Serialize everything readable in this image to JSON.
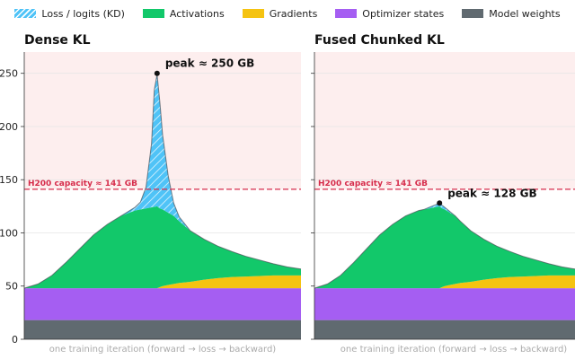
{
  "colors": {
    "loss": "#4fc3f7",
    "activations": "#12c86a",
    "gradients": "#f5c311",
    "optimizer": "#a55ef2",
    "weights": "#606a70",
    "capacity": "#d62c4b",
    "danger_zone": "#fdeeee"
  },
  "legend": [
    {
      "key": "loss",
      "label": "Loss / logits (KD)",
      "hatched": true
    },
    {
      "key": "activations",
      "label": "Activations",
      "hatched": false
    },
    {
      "key": "gradients",
      "label": "Gradients",
      "hatched": false
    },
    {
      "key": "optimizer",
      "label": "Optimizer states",
      "hatched": false
    },
    {
      "key": "weights",
      "label": "Model weights",
      "hatched": false
    }
  ],
  "chart_data": [
    {
      "type": "area",
      "title": "Dense KL",
      "xlabel": "one training iteration  (forward → loss → backward)",
      "ylabel": "",
      "ylim": [
        0,
        270
      ],
      "yticks": [
        0,
        50,
        100,
        150,
        200,
        250
      ],
      "show_ytick_labels": true,
      "capacity": {
        "value": 141,
        "label": "H200 capacity ≈ 141 GB"
      },
      "peak": {
        "x": 0.48,
        "value": 250,
        "label": "peak ≈ 250 GB"
      },
      "x": [
        0,
        0.05,
        0.1,
        0.15,
        0.2,
        0.25,
        0.3,
        0.35,
        0.4,
        0.42,
        0.44,
        0.46,
        0.47,
        0.48,
        0.49,
        0.5,
        0.52,
        0.54,
        0.56,
        0.6,
        0.65,
        0.7,
        0.75,
        0.8,
        0.85,
        0.9,
        0.95,
        1
      ],
      "series": [
        {
          "key": "weights",
          "values": [
            18,
            18,
            18,
            18,
            18,
            18,
            18,
            18,
            18,
            18,
            18,
            18,
            18,
            18,
            18,
            18,
            18,
            18,
            18,
            18,
            18,
            18,
            18,
            18,
            18,
            18,
            18,
            18
          ]
        },
        {
          "key": "optimizer",
          "values": [
            30,
            30,
            30,
            30,
            30,
            30,
            30,
            30,
            30,
            30,
            30,
            30,
            30,
            30,
            30,
            30,
            30,
            30,
            30,
            30,
            30,
            30,
            30,
            30,
            30,
            30,
            30,
            30
          ]
        },
        {
          "key": "gradients",
          "values": [
            0,
            0,
            0,
            0,
            0,
            0,
            0,
            0,
            0,
            0,
            0,
            0,
            0,
            0,
            1,
            2,
            3,
            4,
            5,
            6,
            8,
            9.5,
            10.5,
            11,
            11.5,
            12,
            12,
            12
          ]
        },
        {
          "key": "activations",
          "values": [
            0,
            4,
            12,
            24,
            37,
            50,
            60,
            68,
            73,
            74,
            75,
            76,
            76.5,
            77,
            74,
            72,
            68,
            64,
            58,
            48,
            38,
            30,
            24,
            19,
            15,
            11,
            8,
            6
          ]
        },
        {
          "key": "loss",
          "values": [
            0,
            0,
            0,
            0,
            0,
            0,
            0,
            0,
            3,
            7,
            20,
            60,
            110,
            124,
            100,
            70,
            35,
            12,
            4,
            0,
            0,
            0,
            0,
            0,
            0,
            0,
            0,
            0
          ]
        }
      ]
    },
    {
      "type": "area",
      "title": "Fused Chunked KL",
      "xlabel": "one training iteration  (forward → loss → backward)",
      "ylabel": "",
      "ylim": [
        0,
        270
      ],
      "yticks": [
        0,
        50,
        100,
        150,
        200,
        250
      ],
      "show_ytick_labels": false,
      "capacity": {
        "value": 141,
        "label": "H200 capacity ≈ 141 GB"
      },
      "peak": {
        "x": 0.48,
        "value": 128,
        "label": "peak ≈ 128 GB"
      },
      "x": [
        0,
        0.05,
        0.1,
        0.15,
        0.2,
        0.25,
        0.3,
        0.35,
        0.4,
        0.42,
        0.44,
        0.46,
        0.47,
        0.48,
        0.49,
        0.5,
        0.52,
        0.54,
        0.56,
        0.6,
        0.65,
        0.7,
        0.75,
        0.8,
        0.85,
        0.9,
        0.95,
        1
      ],
      "series": [
        {
          "key": "weights",
          "values": [
            18,
            18,
            18,
            18,
            18,
            18,
            18,
            18,
            18,
            18,
            18,
            18,
            18,
            18,
            18,
            18,
            18,
            18,
            18,
            18,
            18,
            18,
            18,
            18,
            18,
            18,
            18,
            18
          ]
        },
        {
          "key": "optimizer",
          "values": [
            30,
            30,
            30,
            30,
            30,
            30,
            30,
            30,
            30,
            30,
            30,
            30,
            30,
            30,
            30,
            30,
            30,
            30,
            30,
            30,
            30,
            30,
            30,
            30,
            30,
            30,
            30,
            30
          ]
        },
        {
          "key": "gradients",
          "values": [
            0,
            0,
            0,
            0,
            0,
            0,
            0,
            0,
            0,
            0,
            0,
            0,
            0,
            0,
            1,
            2,
            3,
            4,
            5,
            6,
            8,
            9.5,
            10.5,
            11,
            11.5,
            12,
            12,
            12
          ]
        },
        {
          "key": "activations",
          "values": [
            0,
            4,
            12,
            24,
            37,
            50,
            60,
            68,
            73,
            74,
            75,
            76,
            76.5,
            77,
            74,
            72,
            68,
            64,
            58,
            48,
            38,
            30,
            24,
            19,
            15,
            11,
            8,
            6
          ]
        },
        {
          "key": "loss",
          "values": [
            0,
            0,
            0,
            0,
            0,
            0,
            0,
            0,
            0,
            0,
            1,
            2,
            2.5,
            3,
            3,
            2,
            1,
            0,
            0,
            0,
            0,
            0,
            0,
            0,
            0,
            0,
            0,
            0
          ]
        }
      ]
    }
  ]
}
